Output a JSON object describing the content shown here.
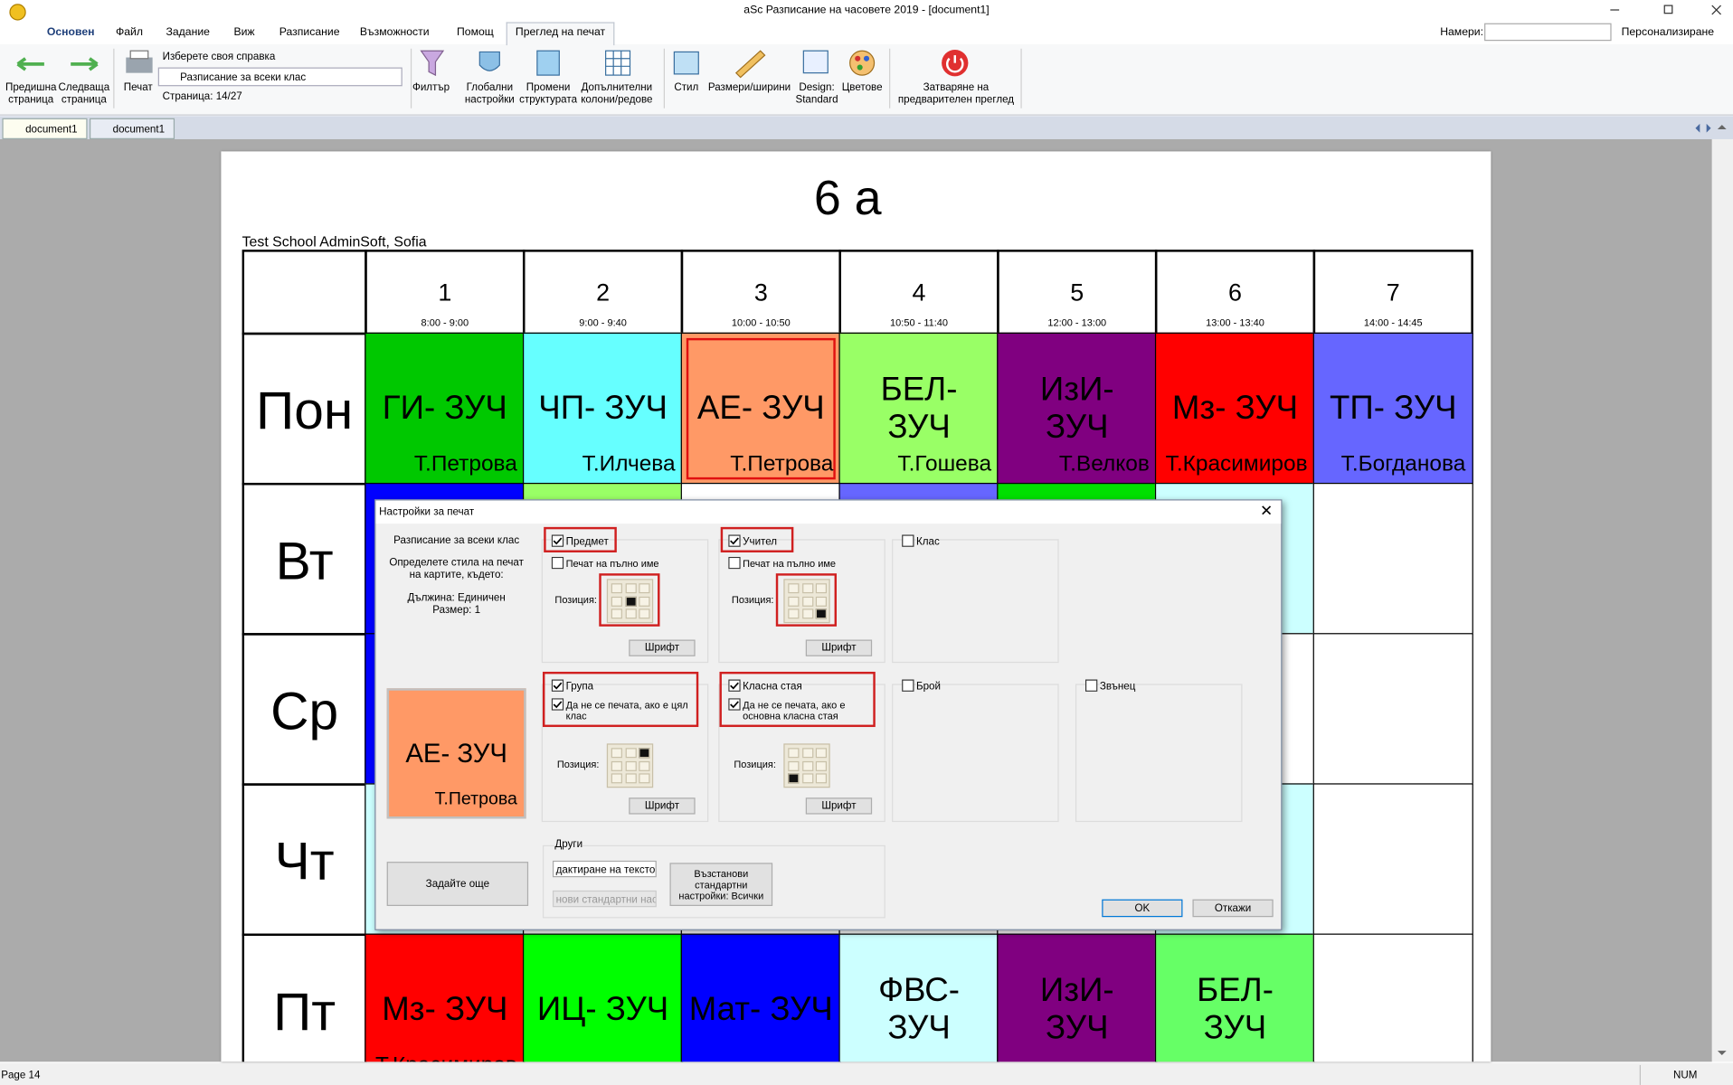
{
  "window": {
    "title": "aSc Разписание на часовете 2019  - [document1]"
  },
  "menu": {
    "tabs": [
      "Основен",
      "Файл",
      "Задание",
      "Виж",
      "Разписание",
      "Възможности",
      "Помощ",
      "Преглед на печат"
    ],
    "find_label": "Намери:",
    "customize": "Персонализиране"
  },
  "ribbon": {
    "prev": "Предишна страница",
    "next": "Следваща страница",
    "print": "Печат",
    "report_label": "Изберете своя справка",
    "report": "Разписание за всеки клас",
    "page": "Страница: 14/27",
    "buttons": [
      "Филтър",
      "Глобални настройки",
      "Промени структурата",
      "Допълнителни колони/редове",
      "Стил",
      "Размери/ширини",
      "Design: Standard",
      "Цветове",
      "Затваряне на предварителен преглед"
    ]
  },
  "doc_tabs": [
    "document1",
    "document1"
  ],
  "timetable": {
    "title": "6 а",
    "school": "Test School AdminSoft, Sofia",
    "periods": [
      {
        "number": "1",
        "time": "8:00 - 9:00"
      },
      {
        "number": "2",
        "time": "9:00 - 9:40"
      },
      {
        "number": "3",
        "time": "10:00 - 10:50"
      },
      {
        "number": "4",
        "time": "10:50 - 11:40"
      },
      {
        "number": "5",
        "time": "12:00 - 13:00"
      },
      {
        "number": "6",
        "time": "13:00 - 13:40"
      },
      {
        "number": "7",
        "time": "14:00 - 14:45"
      }
    ],
    "days": [
      {
        "name": "Пон",
        "cells": [
          {
            "subject": "ГИ- ЗУЧ",
            "teacher": "Т.Петрова",
            "color": "#00c800"
          },
          {
            "subject": "ЧП- ЗУЧ",
            "teacher": "Т.Илчева",
            "color": "#66ffff"
          },
          {
            "subject": "АЕ- ЗУЧ",
            "teacher": "Т.Петрова",
            "color": "#ff9966",
            "selected": true
          },
          {
            "subject": "БЕЛ- ЗУЧ",
            "teacher": "Т.Гошева",
            "color": "#99ff66"
          },
          {
            "subject": "ИзИ- ЗУЧ",
            "teacher": "Т.Велков",
            "color": "#800080"
          },
          {
            "subject": "Мз- ЗУЧ",
            "teacher": "Т.Красимиров",
            "color": "#ff0000"
          },
          {
            "subject": "ТП- ЗУЧ",
            "teacher": "Т.Богданова",
            "color": "#6666ff"
          }
        ]
      },
      {
        "name": "Вт",
        "cells": [
          {
            "color": "#0000ff"
          },
          {
            "color": "#99ff66"
          },
          null,
          {
            "color": "#6666ff"
          },
          {
            "color": "#00e000"
          },
          {
            "color": "#ccffff"
          },
          null
        ]
      },
      {
        "name": "Ср",
        "cells": [
          {
            "color": "#0000ff"
          },
          null,
          null,
          null,
          null,
          null,
          null
        ]
      },
      {
        "name": "Чт",
        "cells": [
          {
            "color": "#ccffff"
          },
          null,
          null,
          null,
          null,
          {
            "color": "#ccffff"
          },
          null
        ]
      },
      {
        "name": "Пт",
        "cells": [
          {
            "subject": "Мз- ЗУЧ",
            "teacher": "Т.Красимиров",
            "color": "#ff0000"
          },
          {
            "subject": "ИЦ- ЗУЧ",
            "color": "#00ff00"
          },
          {
            "subject": "Мат- ЗУЧ",
            "color": "#0000ff"
          },
          {
            "subject": "ФВС- ЗУЧ",
            "color": "#ccffff"
          },
          {
            "subject": "ИзИ- ЗУЧ",
            "color": "#800080"
          },
          {
            "subject": "БЕЛ- ЗУЧ",
            "color": "#66ff66"
          },
          null
        ]
      }
    ]
  },
  "dialog": {
    "title": "Настройки за печат",
    "report": "Разписание за всеки клас",
    "instruction": "Определете стила на печат на картите, където:",
    "length": "Дължина: Единичен",
    "size": "Размер: 1",
    "preview": {
      "subject": "АЕ- ЗУЧ",
      "teacher": "Т.Петрова",
      "color": "#ff9966"
    },
    "more": "Задайте още",
    "position_label": "Позиция:",
    "font_button": "Шрифт",
    "groups": [
      {
        "label": "Предмет",
        "checked": true,
        "highlight": true,
        "options": [
          {
            "label": "Печат на пълно име",
            "checked": false
          }
        ],
        "position": [
          1,
          1
        ]
      },
      {
        "label": "Учител",
        "checked": true,
        "highlight": true,
        "options": [
          {
            "label": "Печат на пълно име",
            "checked": false
          }
        ],
        "position": [
          2,
          2
        ]
      },
      {
        "label": "Клас",
        "checked": false
      },
      {
        "label": "Група",
        "checked": true,
        "highlight": true,
        "options": [
          {
            "label": "Да не се печата, ако е цял клас",
            "checked": true
          }
        ],
        "position": [
          0,
          2
        ]
      },
      {
        "label": "Класна стая",
        "checked": true,
        "highlight": true,
        "options": [
          {
            "label": "Да не се печата, ако е основна класна стая",
            "checked": true
          }
        ],
        "position": [
          2,
          0
        ]
      },
      {
        "label": "Брой",
        "checked": false
      },
      {
        "label": "Звънец",
        "checked": false
      }
    ],
    "other": {
      "label": "Други",
      "edit": "дактиране на текстов",
      "new": "нови стандартни нас",
      "restore": "Възстанови стандартни настройки: Всички"
    },
    "ok": "OK",
    "cancel": "Откажи"
  },
  "status": {
    "page": "Page 14",
    "num": "NUM"
  }
}
